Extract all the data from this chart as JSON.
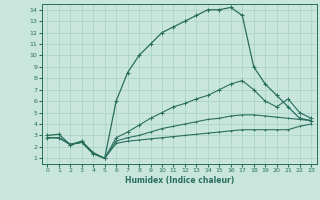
{
  "xlabel": "Humidex (Indice chaleur)",
  "xlim": [
    -0.5,
    23.5
  ],
  "ylim": [
    0.5,
    14.5
  ],
  "xticks": [
    0,
    1,
    2,
    3,
    4,
    5,
    6,
    7,
    8,
    9,
    10,
    11,
    12,
    13,
    14,
    15,
    16,
    17,
    18,
    19,
    20,
    21,
    22,
    23
  ],
  "yticks": [
    1,
    2,
    3,
    4,
    5,
    6,
    7,
    8,
    9,
    10,
    11,
    12,
    13,
    14
  ],
  "bg_color": "#c8e6dc",
  "line_color": "#2a6e5e",
  "grid_color": "#a8d0c4",
  "curves": {
    "main": {
      "x": [
        0,
        1,
        2,
        3,
        4,
        5,
        6,
        7,
        8,
        9,
        10,
        11,
        12,
        13,
        14,
        15,
        16,
        17,
        18,
        19,
        20,
        21,
        22,
        23
      ],
      "y": [
        3.0,
        3.1,
        2.2,
        2.5,
        1.5,
        1.0,
        6.0,
        8.5,
        10.0,
        11.0,
        12.0,
        12.5,
        13.0,
        13.5,
        14.0,
        14.0,
        14.2,
        13.5,
        9.0,
        7.5,
        6.5,
        5.5,
        4.5,
        4.3
      ]
    },
    "line_diag": {
      "x": [
        0,
        1,
        2,
        3,
        4,
        5,
        6,
        7,
        8,
        9,
        10,
        11,
        12,
        13,
        14,
        15,
        16,
        17,
        18,
        19,
        20,
        21,
        22,
        23
      ],
      "y": [
        2.8,
        2.8,
        2.2,
        2.4,
        1.4,
        1.0,
        2.8,
        3.3,
        3.9,
        4.5,
        5.0,
        5.5,
        5.8,
        6.2,
        6.5,
        7.0,
        7.5,
        7.8,
        7.0,
        6.0,
        5.5,
        6.2,
        5.0,
        4.5
      ]
    },
    "line_gentle": {
      "x": [
        0,
        1,
        2,
        3,
        4,
        5,
        6,
        7,
        8,
        9,
        10,
        11,
        12,
        13,
        14,
        15,
        16,
        17,
        18,
        19,
        20,
        21,
        22,
        23
      ],
      "y": [
        2.8,
        2.8,
        2.2,
        2.4,
        1.4,
        1.0,
        2.5,
        2.8,
        3.0,
        3.3,
        3.6,
        3.8,
        4.0,
        4.2,
        4.4,
        4.5,
        4.7,
        4.8,
        4.8,
        4.7,
        4.6,
        4.5,
        4.4,
        4.3
      ]
    },
    "line_flat": {
      "x": [
        0,
        1,
        2,
        3,
        4,
        5,
        6,
        7,
        8,
        9,
        10,
        11,
        12,
        13,
        14,
        15,
        16,
        17,
        18,
        19,
        20,
        21,
        22,
        23
      ],
      "y": [
        2.8,
        2.8,
        2.2,
        2.4,
        1.4,
        1.0,
        2.3,
        2.5,
        2.6,
        2.7,
        2.8,
        2.9,
        3.0,
        3.1,
        3.2,
        3.3,
        3.4,
        3.5,
        3.5,
        3.5,
        3.5,
        3.5,
        3.8,
        4.0
      ]
    }
  }
}
